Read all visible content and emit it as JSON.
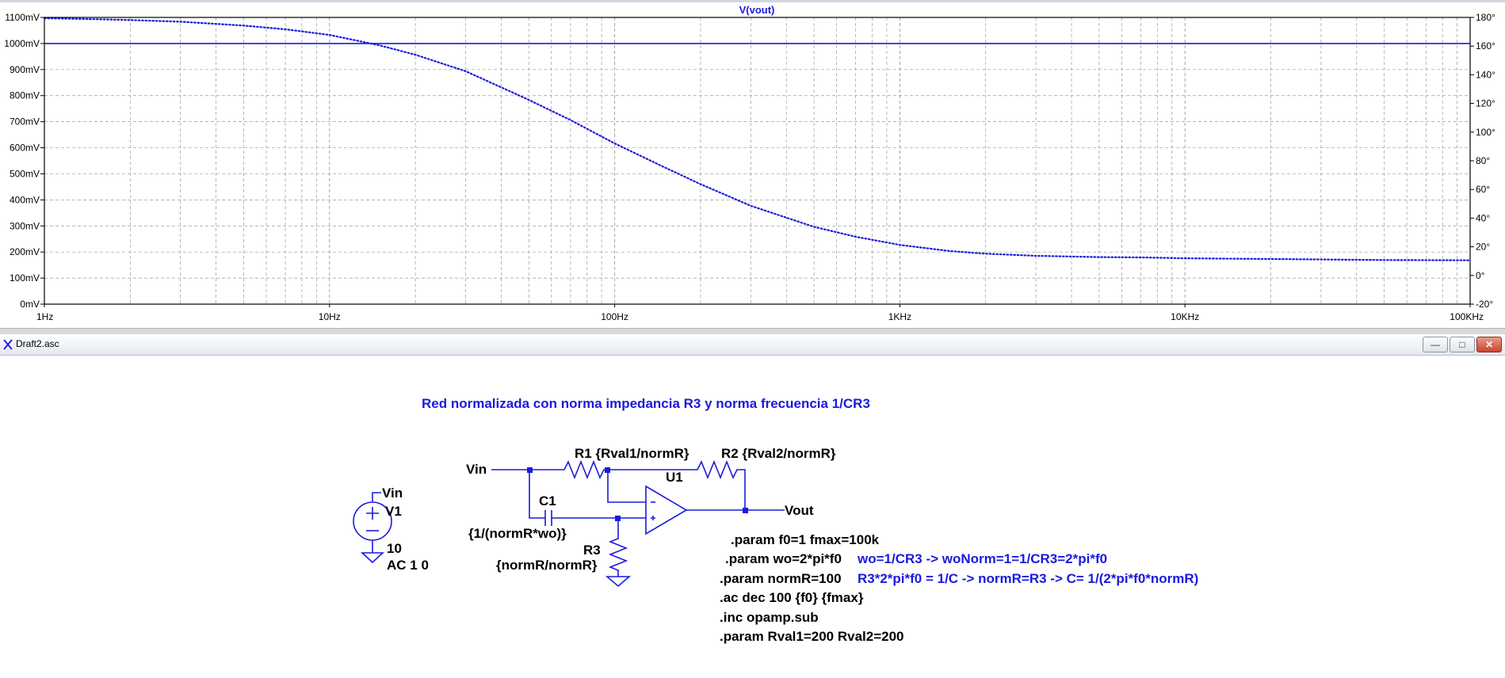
{
  "plot": {
    "trace_title": "V(vout)",
    "trace_color": "#1a1adc",
    "grid_color": "#9a9a9a",
    "background": "#ffffff"
  },
  "chart_data": {
    "type": "line",
    "title": "V(vout)",
    "x_scale": "log",
    "xlim_hz": [
      1,
      100000
    ],
    "x_tick_labels": [
      "1Hz",
      "10Hz",
      "100Hz",
      "1KHz",
      "10KHz",
      "100KHz"
    ],
    "x_tick_values": [
      1,
      10,
      100,
      1000,
      10000,
      100000
    ],
    "ylim_mV": [
      0,
      1100
    ],
    "y_tick_labels_left": [
      "1100mV",
      "1000mV",
      "900mV",
      "800mV",
      "700mV",
      "600mV",
      "500mV",
      "400mV",
      "300mV",
      "200mV",
      "100mV",
      "0mV"
    ],
    "y_tick_values_left": [
      1100,
      1000,
      900,
      800,
      700,
      600,
      500,
      400,
      300,
      200,
      100,
      0
    ],
    "ylim_deg": [
      -20,
      180
    ],
    "y_tick_labels_right": [
      "180°",
      "160°",
      "140°",
      "120°",
      "100°",
      "80°",
      "60°",
      "40°",
      "20°",
      "0°",
      "-20°"
    ],
    "y_tick_values_right": [
      180,
      160,
      140,
      120,
      100,
      80,
      60,
      40,
      20,
      0,
      -20
    ],
    "grid": true,
    "series": [
      {
        "style": "solid",
        "axis": "left",
        "x": [
          1,
          100000
        ],
        "y": [
          1000,
          1000
        ]
      },
      {
        "style": "dotted",
        "axis": "right",
        "x": [
          1,
          1.5,
          2,
          3,
          5,
          7,
          10,
          15,
          20,
          30,
          50,
          70,
          100,
          150,
          200,
          300,
          500,
          700,
          1000,
          1500,
          2000,
          3000,
          5000,
          7000,
          10000,
          20000,
          50000,
          100000
        ],
        "y": [
          179.4,
          178.8,
          178.2,
          177.0,
          174.3,
          171.7,
          167.8,
          160.5,
          154.0,
          142.5,
          122.5,
          108.4,
          92.1,
          75.3,
          63.7,
          48.6,
          33.9,
          27.0,
          21.3,
          17.0,
          15.2,
          13.7,
          12.8,
          12.6,
          12.0,
          11.5,
          10.8,
          10.6
        ]
      }
    ]
  },
  "window": {
    "title": "Draft2.asc",
    "min_label": "—",
    "max_label": "□",
    "close_label": "✕"
  },
  "schematic": {
    "heading": "Red normalizada con norma impedancia R3 y norma frecuencia 1/CR3",
    "vin_label": "Vin",
    "vout_label": "Vout",
    "v1_net": "Vin",
    "v1_name": "V1",
    "v1_value": "10",
    "v1_ac": "AC 1 0",
    "r1_label": "R1 {Rval1/normR}",
    "r2_label": "R2 {Rval2/normR}",
    "u1_label": "U1",
    "c1_name": "C1",
    "c1_value": "{1/(normR*wo)}",
    "r3_name": "R3",
    "r3_value": "{normR/normR}",
    "directives": [
      ".param f0=1 fmax=100k",
      ".param wo=2*pi*f0",
      ".param normR=100",
      ".ac dec 100 {f0} {fmax}",
      ".inc opamp.sub",
      ".param Rval1=200 Rval2=200"
    ],
    "comments": [
      "wo=1/CR3 -> woNorm=1=1/CR3=2*pi*f0",
      "R3*2*pi*f0 = 1/C -> normR=R3 -> C= 1/(2*pi*f0*normR)"
    ]
  }
}
